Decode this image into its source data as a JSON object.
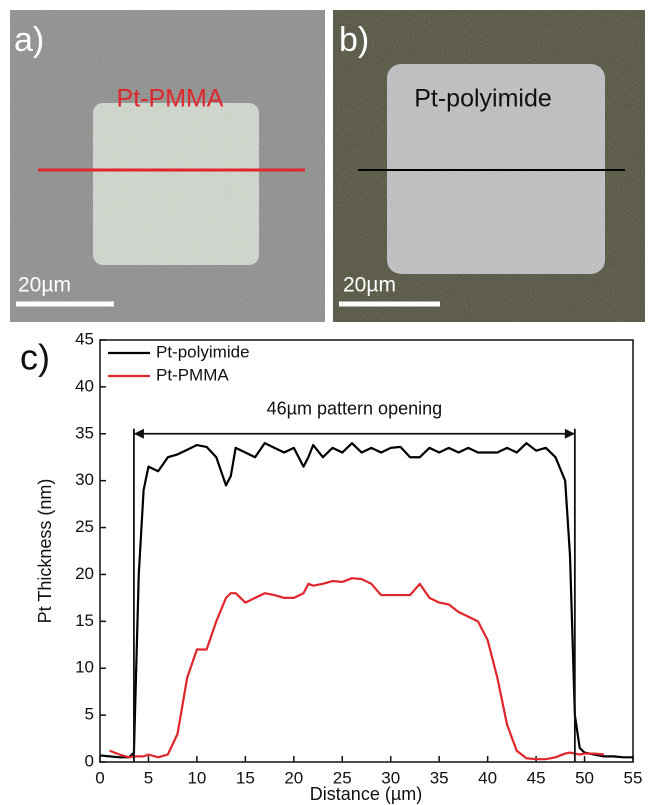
{
  "panels": [
    {
      "label": "a)",
      "title": "Pt-PMMA",
      "scale_bar": "20µm"
    },
    {
      "label": "b)",
      "title": "Pt-polyimide",
      "scale_bar": "20µm"
    }
  ],
  "chart_data": {
    "type": "line",
    "panel_label": "c)",
    "x_label": "Distance (µm)",
    "y_label": "Pt Thickness (nm)",
    "annotation": {
      "text": "46µm pattern opening",
      "x": [
        3.5,
        49
      ],
      "y": 35
    },
    "xlim": [
      0,
      55
    ],
    "ylim": [
      0,
      45
    ],
    "xticks": [
      0,
      5,
      10,
      15,
      20,
      25,
      30,
      35,
      40,
      45,
      50,
      55
    ],
    "yticks": [
      0,
      5,
      10,
      15,
      20,
      25,
      30,
      35,
      40,
      45
    ],
    "legend": "upper left",
    "x": [
      0,
      1,
      2,
      3,
      3.5,
      4,
      4.5,
      5,
      6,
      7,
      8,
      9,
      10,
      11,
      12,
      13,
      13.5,
      14,
      15,
      16,
      17,
      18,
      19,
      20,
      21,
      21.5,
      22,
      23,
      24,
      25,
      26,
      27,
      28,
      29,
      30,
      31,
      32,
      33,
      34,
      35,
      36,
      37,
      38,
      39,
      40,
      41,
      42,
      43,
      44,
      45,
      46,
      47,
      48,
      48.5,
      49,
      49.5,
      50,
      51,
      52,
      53,
      54,
      55
    ],
    "series": [
      {
        "name": "Pt-polyimide",
        "color": "#000000",
        "values": [
          0.7,
          0.6,
          0.5,
          0.5,
          1,
          20,
          29,
          31.5,
          31,
          32.5,
          32.8,
          33.3,
          33.8,
          33.6,
          32.5,
          29.5,
          30.5,
          33.5,
          33,
          32.5,
          34,
          33.5,
          33,
          33.5,
          31.5,
          32.5,
          33.8,
          32.5,
          33.5,
          33,
          34,
          33,
          33.5,
          33,
          33.5,
          33.6,
          32.5,
          32.5,
          33.5,
          33,
          33.5,
          33,
          33.5,
          33,
          33,
          33,
          33.5,
          33,
          34,
          33.2,
          33.5,
          32.5,
          30,
          22,
          5,
          1.5,
          1,
          0.8,
          0.6,
          0.6,
          0.5,
          0.5
        ]
      },
      {
        "name": "Pt-PMMA",
        "color": "#e0262b",
        "values": [
          null,
          1.2,
          0.8,
          0.5,
          0.6,
          0.6,
          0.6,
          0.8,
          0.5,
          0.8,
          3,
          9,
          12,
          12,
          15,
          17.5,
          18,
          18,
          17,
          17.5,
          18,
          17.8,
          17.5,
          17.5,
          18,
          19,
          18.8,
          19,
          19.3,
          19.2,
          19.6,
          19.5,
          19,
          17.8,
          17.8,
          17.8,
          17.8,
          19,
          17.5,
          17,
          16.8,
          16,
          15.5,
          15,
          13,
          9,
          4,
          1.2,
          0.4,
          0.3,
          0.3,
          0.5,
          0.9,
          1,
          0.9,
          0.8,
          0.9,
          0.9,
          0.8,
          null,
          null,
          null
        ]
      }
    ]
  }
}
